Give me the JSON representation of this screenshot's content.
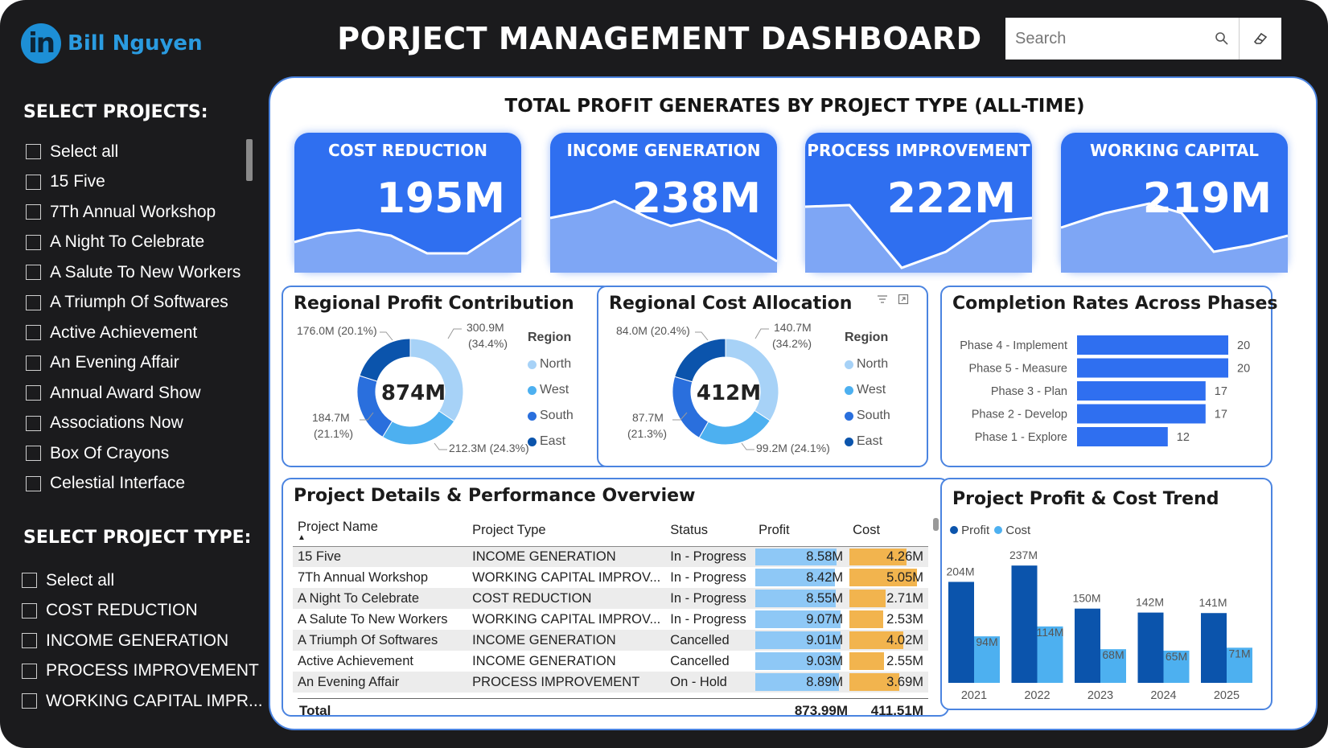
{
  "brand": {
    "name": "Bill Nguyen",
    "logo_text": "in"
  },
  "header": {
    "title": "PORJECT MANAGEMENT DASHBOARD"
  },
  "search": {
    "placeholder": "Search"
  },
  "sidebar": {
    "projects_heading": "SELECT PROJECTS:",
    "projects": [
      "Select all",
      "15 Five",
      "7Th Annual Workshop",
      "A Night To Celebrate",
      "A Salute To New Workers",
      "A Triumph Of Softwares",
      "Active Achievement",
      "An Evening Affair",
      "Annual Award Show",
      "Associations Now",
      "Box Of Crayons",
      "Celestial Interface"
    ],
    "types_heading": "SELECT PROJECT TYPE:",
    "types": [
      "Select all",
      "COST REDUCTION",
      "INCOME GENERATION",
      "PROCESS IMPROVEMENT",
      "WORKING CAPITAL IMPR..."
    ]
  },
  "kpi_section": {
    "title": "TOTAL PROFIT GENERATES BY PROJECT TYPE (ALL-TIME)",
    "cards": [
      {
        "label": "COST REDUCTION",
        "value": "195M"
      },
      {
        "label": "INCOME GENERATION",
        "value": "238M"
      },
      {
        "label": "PROCESS IMPROVEMENT",
        "value": "222M"
      },
      {
        "label": "WORKING CAPITAL",
        "value": "219M"
      }
    ]
  },
  "regional_profit": {
    "title": "Regional Profit Contribution",
    "center": "874M",
    "labels": [
      "300.9M",
      "(34.4%)",
      "212.3M (24.3%)",
      "184.7M",
      "(21.1%)",
      "176.0M (20.1%)"
    ]
  },
  "regional_cost": {
    "title": "Regional Cost Allocation",
    "center": "412M",
    "labels": [
      "140.7M",
      "(34.2%)",
      "99.2M (24.1%)",
      "87.7M",
      "(21.3%)",
      "84.0M (20.4%)"
    ]
  },
  "region_legend": {
    "title": "Region",
    "items": [
      "North",
      "West",
      "South",
      "East"
    ]
  },
  "completion": {
    "title": "Completion Rates Across Phases"
  },
  "details": {
    "title": "Project Details & Performance Overview",
    "columns": [
      "Project Name",
      "Project Type",
      "Status",
      "Profit",
      "Cost"
    ],
    "rows": [
      [
        "15 Five",
        "INCOME GENERATION",
        "In - Progress",
        "8.58M",
        "4.26M"
      ],
      [
        "7Th Annual Workshop",
        "WORKING CAPITAL IMPROV...",
        "In - Progress",
        "8.42M",
        "5.05M"
      ],
      [
        "A Night To Celebrate",
        "COST REDUCTION",
        "In - Progress",
        "8.55M",
        "2.71M"
      ],
      [
        "A Salute To New Workers",
        "WORKING CAPITAL IMPROV...",
        "In - Progress",
        "9.07M",
        "2.53M"
      ],
      [
        "A Triumph Of Softwares",
        "INCOME GENERATION",
        "Cancelled",
        "9.01M",
        "4.02M"
      ],
      [
        "Active Achievement",
        "INCOME GENERATION",
        "Cancelled",
        "9.03M",
        "2.55M"
      ],
      [
        "An Evening Affair",
        "PROCESS IMPROVEMENT",
        "On - Hold",
        "8.89M",
        "3.69M"
      ]
    ],
    "total_label": "Total",
    "total_profit": "873.99M",
    "total_cost": "411.51M"
  },
  "trend": {
    "title": "Project Profit & Cost Trend"
  },
  "colors": {
    "kpi_blue": "#2f6ff0",
    "north": "#a7d2f7",
    "west": "#4db0f0",
    "south": "#2a6fdd",
    "east": "#0b54ac",
    "profit_bar": "#8ec8f6",
    "cost_bar": "#f2b44e"
  },
  "chart_data": [
    {
      "type": "pie",
      "title": "Regional Profit Contribution",
      "categories": [
        "North",
        "West",
        "South",
        "East"
      ],
      "values": [
        300.9,
        212.3,
        184.7,
        176.0
      ],
      "percent": [
        34.4,
        24.3,
        21.1,
        20.1
      ],
      "center_label": "874M",
      "legend": "right"
    },
    {
      "type": "pie",
      "title": "Regional Cost Allocation",
      "categories": [
        "North",
        "West",
        "South",
        "East"
      ],
      "values": [
        140.7,
        99.2,
        87.7,
        84.0
      ],
      "percent": [
        34.2,
        24.1,
        21.3,
        20.4
      ],
      "center_label": "412M",
      "legend": "right"
    },
    {
      "type": "bar",
      "orientation": "horizontal",
      "title": "Completion Rates Across Phases",
      "categories": [
        "Phase 4 - Implement",
        "Phase 5 - Measure",
        "Phase 3 - Plan",
        "Phase 2 - Develop",
        "Phase 1 - Explore"
      ],
      "values": [
        20,
        20,
        17,
        17,
        12
      ]
    },
    {
      "type": "bar",
      "title": "Project Profit & Cost Trend",
      "categories": [
        "2021",
        "2022",
        "2023",
        "2024",
        "2025"
      ],
      "series": [
        {
          "name": "Profit",
          "values": [
            204,
            237,
            150,
            142,
            141
          ],
          "labels": [
            "204M",
            "237M",
            "150M",
            "142M",
            "141M"
          ]
        },
        {
          "name": "Cost",
          "values": [
            94,
            114,
            68,
            65,
            71
          ],
          "labels": [
            "94M",
            "114M",
            "68M",
            "65M",
            "71M"
          ]
        }
      ],
      "legend": "top-left"
    }
  ]
}
